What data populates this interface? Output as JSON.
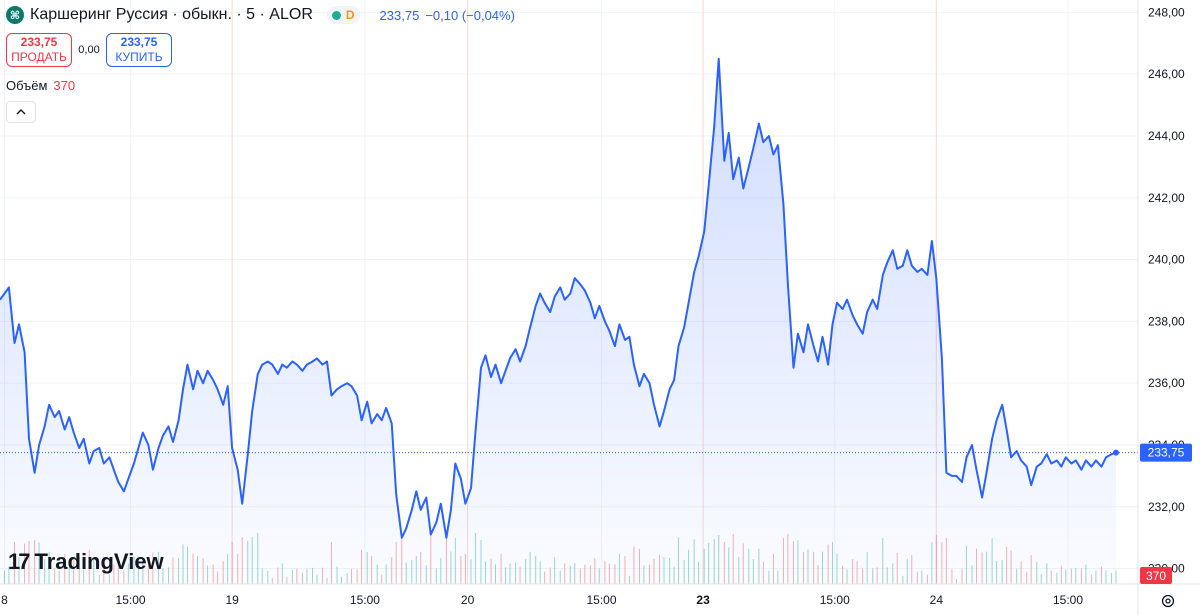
{
  "header": {
    "title": "Каршеринг Руссия · обыкн. · 5 · ALOR",
    "d_badge": "D",
    "last_price": "233,75",
    "change": "−0,10 (−0,04%)"
  },
  "trade": {
    "sell_price": "233,75",
    "sell_label": "ПРОДАТЬ",
    "spread": "0,00",
    "buy_price": "233,75",
    "buy_label": "КУПИТЬ"
  },
  "volume": {
    "label": "Объём",
    "value": "370"
  },
  "branding": {
    "name": "TradingView"
  },
  "colors": {
    "line": "#2962ff",
    "up": "#26a69a",
    "down": "#ef5350",
    "grid": "#f0f3fa",
    "session": "#fbd9d3"
  },
  "chart_data": {
    "type": "area",
    "y_ticks": [
      "230,00",
      "232,00",
      "234,00",
      "236,00",
      "238,00",
      "240,00",
      "242,00",
      "244,00",
      "246,00",
      "248,00"
    ],
    "y_tick_values": [
      230,
      232,
      234,
      236,
      238,
      240,
      242,
      244,
      246,
      248
    ],
    "ylim": [
      229.5,
      248.4
    ],
    "xlim": [
      0,
      100
    ],
    "x_ticks": [
      {
        "label": "8",
        "x": 0.4
      },
      {
        "label": "15:00",
        "x": 11.7
      },
      {
        "label": "19",
        "x": 20.8
      },
      {
        "label": "15:00",
        "x": 32.7
      },
      {
        "label": "20",
        "x": 41.9
      },
      {
        "label": "15:00",
        "x": 53.9
      },
      {
        "label": "23",
        "x": 63.0
      },
      {
        "label": "15:00",
        "x": 74.8
      },
      {
        "label": "24",
        "x": 83.9
      },
      {
        "label": "15:00",
        "x": 95.7
      }
    ],
    "sessions": [
      20.8,
      41.9,
      63.0,
      83.9
    ],
    "current_price": 233.75,
    "current_label": "233,75",
    "volume_label": "370",
    "series": [
      {
        "points": [
          [
            0.0,
            238.7
          ],
          [
            0.4,
            238.9
          ],
          [
            0.8,
            239.1
          ],
          [
            1.3,
            237.3
          ],
          [
            1.7,
            237.9
          ],
          [
            2.2,
            237.0
          ],
          [
            2.6,
            234.2
          ],
          [
            3.1,
            233.1
          ],
          [
            3.5,
            234.0
          ],
          [
            4.0,
            234.6
          ],
          [
            4.4,
            235.3
          ],
          [
            4.9,
            234.9
          ],
          [
            5.3,
            235.1
          ],
          [
            5.8,
            234.5
          ],
          [
            6.2,
            234.9
          ],
          [
            6.6,
            234.4
          ],
          [
            7.1,
            233.9
          ],
          [
            7.5,
            234.2
          ],
          [
            8.0,
            233.4
          ],
          [
            8.4,
            233.8
          ],
          [
            8.9,
            233.9
          ],
          [
            9.3,
            233.4
          ],
          [
            9.8,
            233.6
          ],
          [
            10.2,
            233.2
          ],
          [
            10.6,
            232.8
          ],
          [
            11.1,
            232.5
          ],
          [
            11.5,
            232.9
          ],
          [
            12.0,
            233.4
          ],
          [
            12.4,
            233.9
          ],
          [
            12.8,
            234.4
          ],
          [
            13.3,
            234.0
          ],
          [
            13.7,
            233.2
          ],
          [
            14.2,
            233.9
          ],
          [
            14.6,
            234.3
          ],
          [
            15.1,
            234.6
          ],
          [
            15.5,
            234.1
          ],
          [
            16.0,
            234.8
          ],
          [
            16.4,
            235.8
          ],
          [
            16.8,
            236.6
          ],
          [
            17.3,
            235.8
          ],
          [
            17.7,
            236.4
          ],
          [
            18.2,
            236.0
          ],
          [
            18.6,
            236.4
          ],
          [
            19.1,
            236.1
          ],
          [
            19.5,
            235.8
          ],
          [
            20.0,
            235.3
          ],
          [
            20.4,
            235.9
          ],
          [
            20.8,
            233.9
          ],
          [
            21.3,
            233.2
          ],
          [
            21.7,
            232.1
          ],
          [
            22.2,
            233.7
          ],
          [
            22.6,
            235.1
          ],
          [
            23.1,
            236.3
          ],
          [
            23.5,
            236.6
          ],
          [
            24.0,
            236.7
          ],
          [
            24.4,
            236.6
          ],
          [
            24.9,
            236.3
          ],
          [
            25.3,
            236.6
          ],
          [
            25.7,
            236.5
          ],
          [
            26.2,
            236.7
          ],
          [
            26.6,
            236.6
          ],
          [
            27.1,
            236.4
          ],
          [
            27.5,
            236.6
          ],
          [
            28.0,
            236.7
          ],
          [
            28.4,
            236.8
          ],
          [
            28.9,
            236.6
          ],
          [
            29.3,
            236.7
          ],
          [
            29.7,
            235.6
          ],
          [
            30.2,
            235.8
          ],
          [
            30.6,
            235.9
          ],
          [
            31.1,
            236.0
          ],
          [
            31.5,
            235.9
          ],
          [
            32.0,
            235.6
          ],
          [
            32.4,
            234.8
          ],
          [
            32.9,
            235.4
          ],
          [
            33.3,
            234.7
          ],
          [
            33.8,
            235.0
          ],
          [
            34.2,
            234.8
          ],
          [
            34.6,
            235.2
          ],
          [
            35.1,
            234.7
          ],
          [
            35.5,
            232.4
          ],
          [
            36.0,
            231.0
          ],
          [
            36.4,
            231.3
          ],
          [
            36.9,
            231.9
          ],
          [
            37.3,
            232.5
          ],
          [
            37.7,
            231.9
          ],
          [
            38.2,
            232.3
          ],
          [
            38.6,
            231.1
          ],
          [
            39.1,
            231.5
          ],
          [
            39.5,
            232.1
          ],
          [
            40.0,
            231.0
          ],
          [
            40.4,
            231.9
          ],
          [
            40.8,
            233.4
          ],
          [
            41.3,
            232.9
          ],
          [
            41.7,
            232.1
          ],
          [
            42.2,
            232.6
          ],
          [
            42.6,
            234.4
          ],
          [
            43.1,
            236.5
          ],
          [
            43.5,
            236.9
          ],
          [
            44.0,
            236.2
          ],
          [
            44.4,
            236.6
          ],
          [
            44.9,
            236.0
          ],
          [
            45.3,
            236.4
          ],
          [
            45.7,
            236.8
          ],
          [
            46.2,
            237.1
          ],
          [
            46.6,
            236.7
          ],
          [
            47.1,
            237.2
          ],
          [
            47.5,
            237.8
          ],
          [
            48.0,
            238.5
          ],
          [
            48.4,
            238.9
          ],
          [
            48.8,
            238.6
          ],
          [
            49.3,
            238.3
          ],
          [
            49.7,
            238.8
          ],
          [
            50.2,
            239.1
          ],
          [
            50.6,
            238.7
          ],
          [
            51.1,
            238.9
          ],
          [
            51.5,
            239.4
          ],
          [
            52.0,
            239.2
          ],
          [
            52.4,
            239.0
          ],
          [
            52.9,
            238.6
          ],
          [
            53.3,
            238.1
          ],
          [
            53.7,
            238.5
          ],
          [
            54.2,
            238.0
          ],
          [
            54.6,
            237.7
          ],
          [
            55.1,
            237.2
          ],
          [
            55.5,
            237.9
          ],
          [
            56.0,
            237.4
          ],
          [
            56.4,
            237.5
          ],
          [
            56.8,
            236.6
          ],
          [
            57.3,
            235.9
          ],
          [
            57.7,
            236.3
          ],
          [
            58.2,
            236.0
          ],
          [
            58.6,
            235.3
          ],
          [
            59.1,
            234.6
          ],
          [
            59.5,
            235.1
          ],
          [
            60.0,
            235.8
          ],
          [
            60.4,
            236.1
          ],
          [
            60.8,
            237.2
          ],
          [
            61.3,
            237.8
          ],
          [
            61.7,
            238.6
          ],
          [
            62.2,
            239.6
          ],
          [
            62.6,
            240.1
          ],
          [
            63.1,
            240.9
          ],
          [
            63.5,
            242.4
          ],
          [
            64.0,
            244.3
          ],
          [
            64.4,
            246.5
          ],
          [
            64.9,
            243.2
          ],
          [
            65.3,
            244.1
          ],
          [
            65.7,
            242.6
          ],
          [
            66.2,
            243.3
          ],
          [
            66.6,
            242.3
          ],
          [
            67.1,
            243.0
          ],
          [
            67.5,
            243.6
          ],
          [
            68.0,
            244.4
          ],
          [
            68.4,
            243.8
          ],
          [
            68.9,
            244.0
          ],
          [
            69.3,
            243.4
          ],
          [
            69.7,
            243.7
          ],
          [
            70.2,
            241.8
          ],
          [
            70.6,
            239.2
          ],
          [
            71.1,
            236.5
          ],
          [
            71.5,
            237.6
          ],
          [
            72.0,
            237.0
          ],
          [
            72.4,
            237.9
          ],
          [
            72.9,
            237.2
          ],
          [
            73.3,
            236.7
          ],
          [
            73.7,
            237.5
          ],
          [
            74.2,
            236.6
          ],
          [
            74.6,
            237.9
          ],
          [
            75.0,
            238.6
          ],
          [
            75.5,
            238.4
          ],
          [
            75.9,
            238.7
          ],
          [
            76.4,
            238.2
          ],
          [
            76.8,
            237.9
          ],
          [
            77.3,
            237.6
          ],
          [
            77.7,
            238.3
          ],
          [
            78.2,
            238.7
          ],
          [
            78.6,
            238.4
          ],
          [
            79.1,
            239.5
          ],
          [
            79.5,
            239.9
          ],
          [
            80.0,
            240.3
          ],
          [
            80.4,
            239.7
          ],
          [
            80.9,
            239.8
          ],
          [
            81.3,
            240.3
          ],
          [
            81.7,
            239.8
          ],
          [
            82.2,
            239.6
          ],
          [
            82.6,
            239.7
          ],
          [
            83.1,
            239.5
          ],
          [
            83.5,
            240.6
          ],
          [
            83.9,
            239.4
          ],
          [
            84.4,
            236.8
          ],
          [
            84.8,
            233.1
          ],
          [
            85.3,
            233.0
          ],
          [
            85.7,
            233.0
          ],
          [
            86.2,
            232.8
          ],
          [
            86.6,
            233.6
          ],
          [
            87.1,
            234.0
          ],
          [
            87.5,
            233.2
          ],
          [
            88.0,
            232.3
          ],
          [
            88.4,
            233.1
          ],
          [
            88.9,
            234.2
          ],
          [
            89.3,
            234.8
          ],
          [
            89.8,
            235.3
          ],
          [
            90.2,
            234.5
          ],
          [
            90.6,
            233.6
          ],
          [
            91.1,
            233.8
          ],
          [
            91.5,
            233.5
          ],
          [
            92.0,
            233.3
          ],
          [
            92.4,
            232.7
          ],
          [
            92.9,
            233.3
          ],
          [
            93.3,
            233.4
          ],
          [
            93.8,
            233.7
          ],
          [
            94.2,
            233.4
          ],
          [
            94.7,
            233.5
          ],
          [
            95.1,
            233.3
          ],
          [
            95.5,
            233.6
          ],
          [
            96.0,
            233.4
          ],
          [
            96.4,
            233.5
          ],
          [
            96.9,
            233.2
          ],
          [
            97.3,
            233.5
          ],
          [
            97.8,
            233.3
          ],
          [
            98.2,
            233.5
          ],
          [
            98.7,
            233.3
          ],
          [
            99.1,
            233.6
          ],
          [
            99.6,
            233.7
          ],
          [
            100.0,
            233.75
          ]
        ]
      }
    ]
  }
}
